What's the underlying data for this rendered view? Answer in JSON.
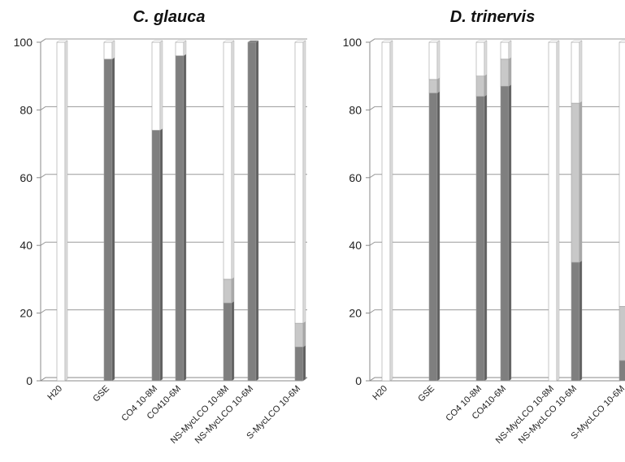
{
  "colors": {
    "dark": "#7f7f7f",
    "dark_side": "#5e5e5e",
    "light": "#c8c8c8",
    "light_side": "#a9a9a9",
    "white": "#ffffff",
    "white_side": "#dcdcdc",
    "grid": "#9a9a9a",
    "axis": "#888888"
  },
  "chart_data": [
    {
      "type": "bar",
      "stacked": true,
      "title": "C. glauca",
      "xlabel": "",
      "ylabel": "",
      "ylim": [
        0,
        100
      ],
      "yticks": [
        0,
        20,
        40,
        60,
        80,
        100
      ],
      "grid": true,
      "categories": [
        "H20",
        "GSE",
        "CO4 10-8M",
        "CO410-6M",
        "NS-MycLCO 10-8M",
        "NS-MycLCO 10-6M",
        "S-MycLCO 10-6M"
      ],
      "series": [
        {
          "color": "dark",
          "values": [
            0,
            95,
            74,
            96,
            23,
            100,
            10
          ]
        },
        {
          "color": "light",
          "values": [
            0,
            0,
            0,
            0,
            7,
            0,
            7
          ]
        },
        {
          "color": "white",
          "values": [
            100,
            5,
            26,
            4,
            70,
            0,
            83
          ]
        }
      ]
    },
    {
      "type": "bar",
      "stacked": true,
      "title": "D. trinervis",
      "xlabel": "",
      "ylabel": "",
      "ylim": [
        0,
        100
      ],
      "yticks": [
        0,
        20,
        40,
        60,
        80,
        100
      ],
      "grid": true,
      "categories": [
        "H20",
        "GSE",
        "CO4 10-8M",
        "CO410-6M",
        "NS-MycLCO 10-8M",
        "NS-MycLCO 10-6M",
        "S-MycLCO 10-6M"
      ],
      "series": [
        {
          "color": "dark",
          "values": [
            0,
            85,
            84,
            87,
            0,
            35,
            6
          ]
        },
        {
          "color": "light",
          "values": [
            0,
            4,
            6,
            8,
            0,
            47,
            16
          ]
        },
        {
          "color": "white",
          "values": [
            100,
            11,
            10,
            5,
            100,
            18,
            78
          ]
        }
      ]
    }
  ]
}
